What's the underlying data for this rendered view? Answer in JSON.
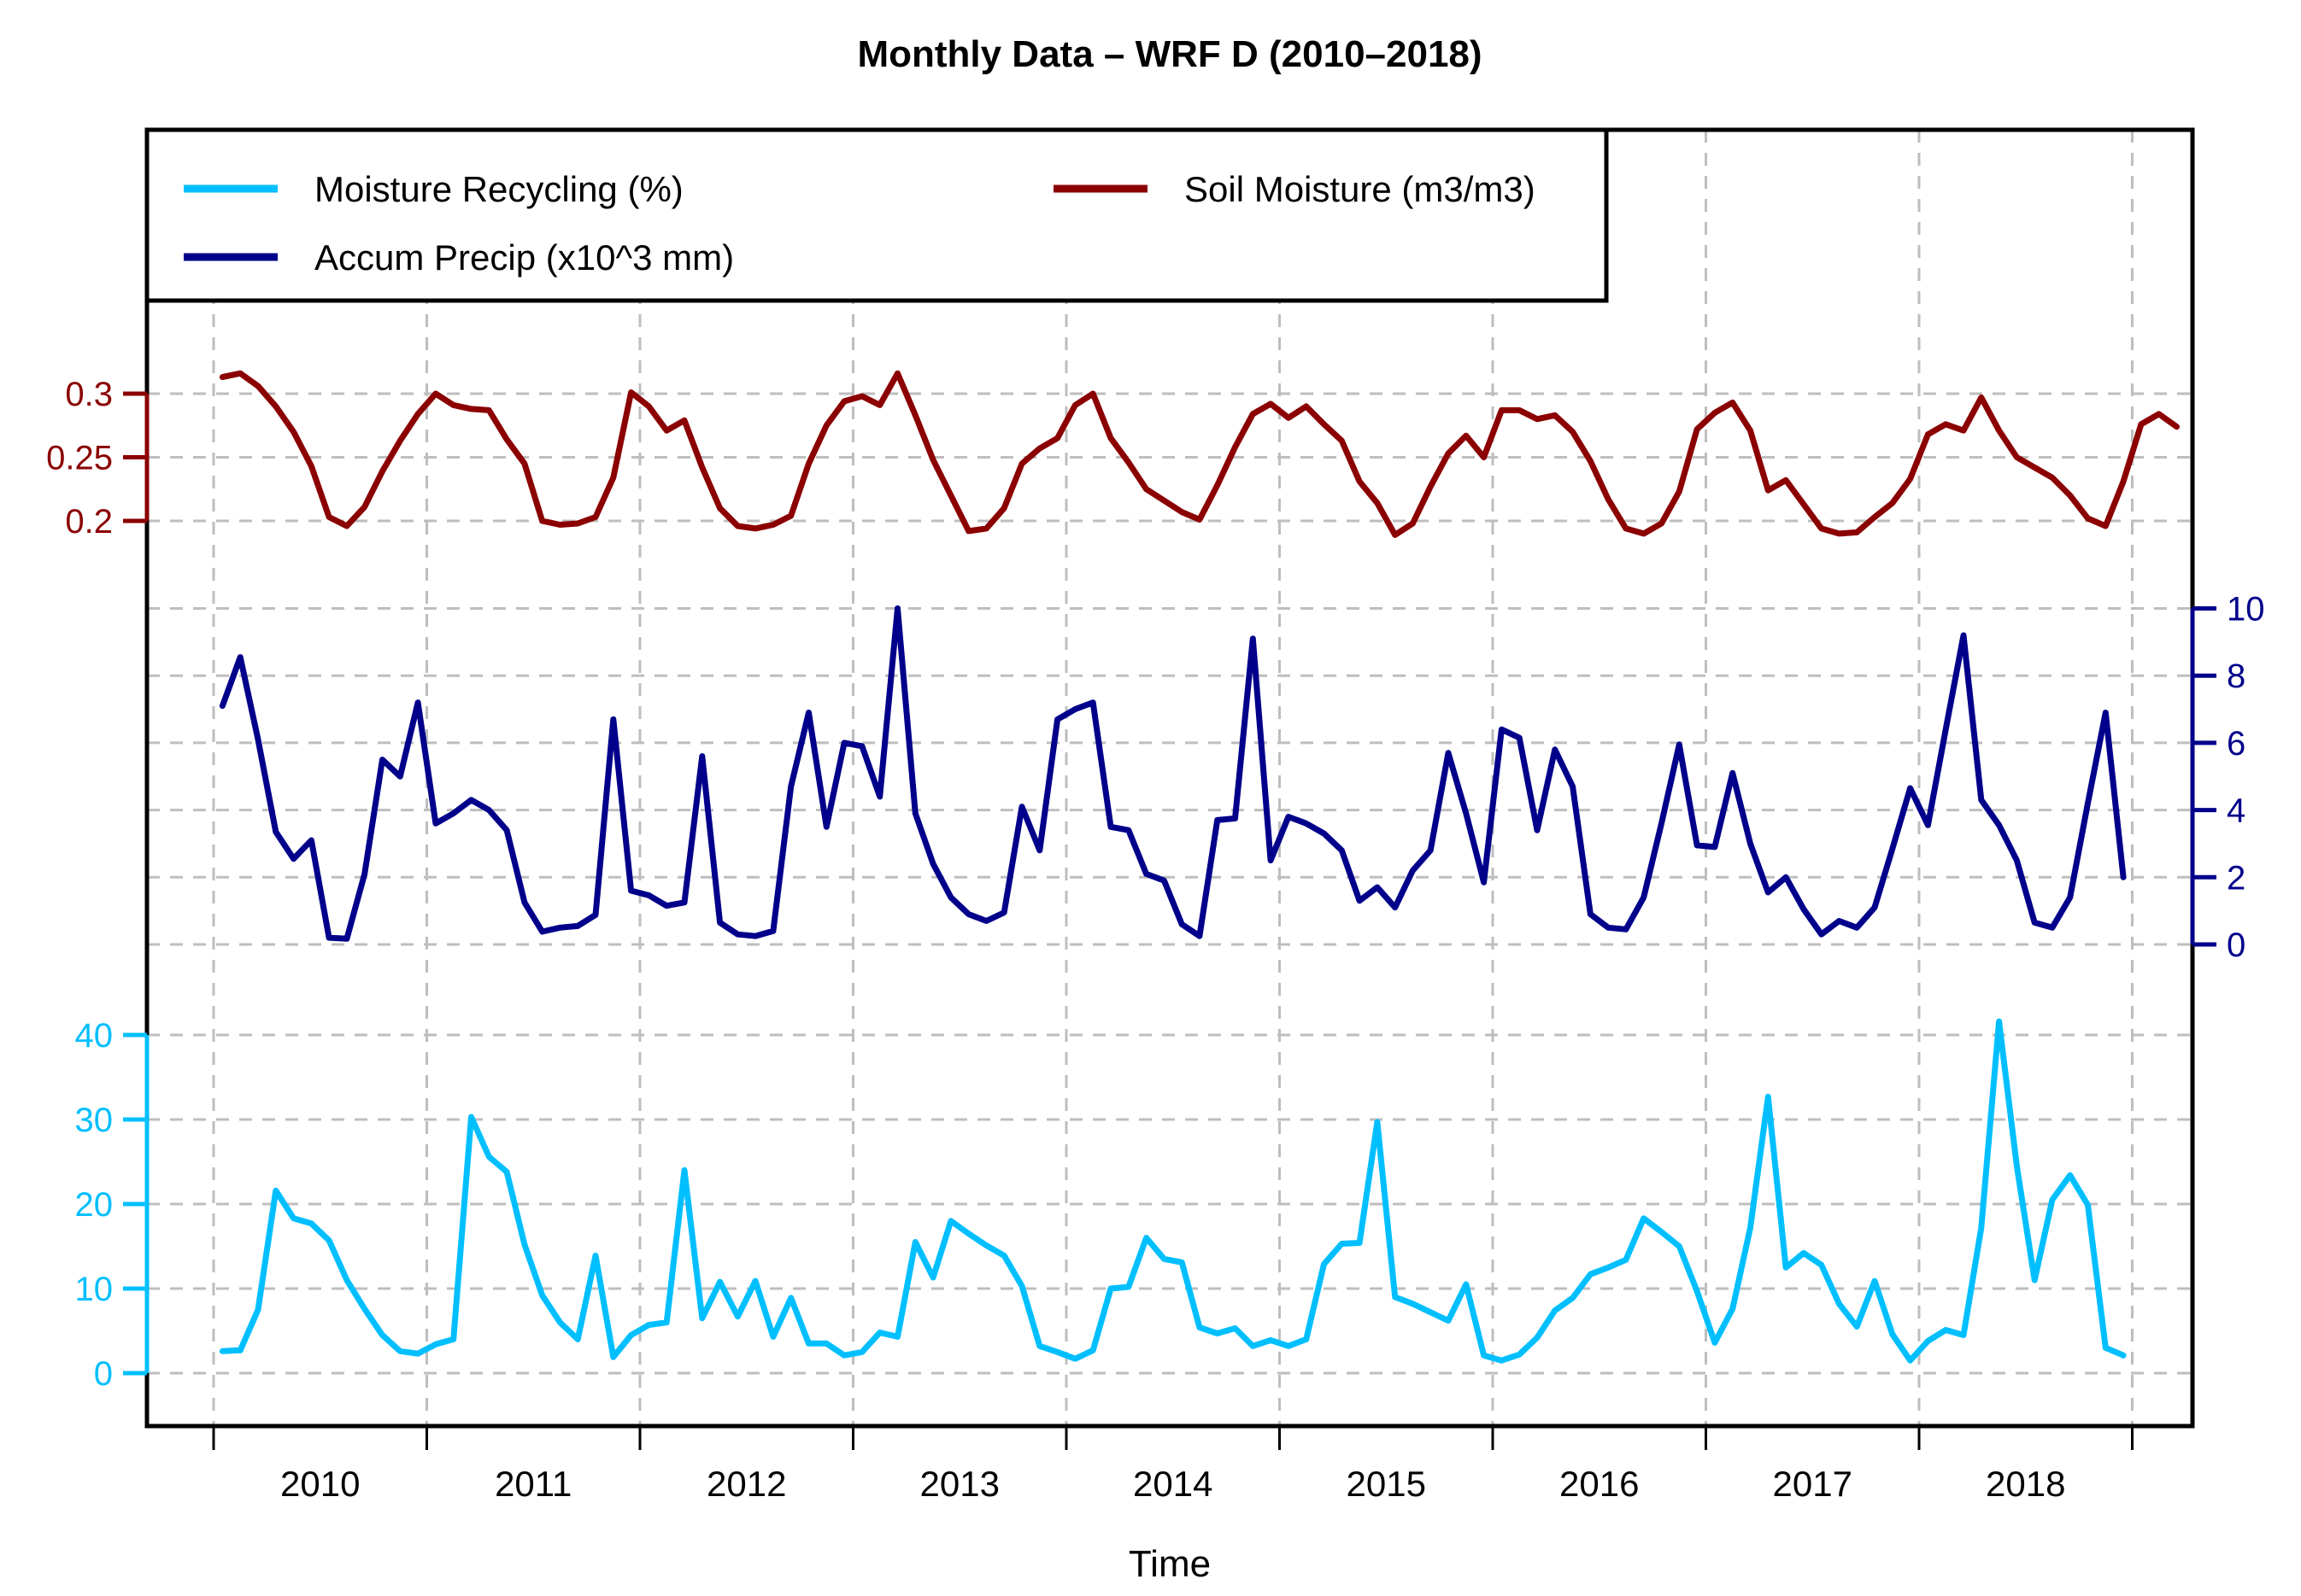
{
  "title": "Monthly Data – WRF D (2010–2018)",
  "xlabel": "Time",
  "colors": {
    "recycling": "#00BFFF",
    "precip": "#00008B",
    "soil": "#8B0000",
    "grid": "#BEBEBE",
    "frame": "#000000",
    "background": "#FFFFFF"
  },
  "chart_data": {
    "type": "line",
    "title": "Monthly Data – WRF D (2010–2018)",
    "xlabel": "Time",
    "grid": true,
    "legend_position": "top-left",
    "x_axis": {
      "tick_years": [
        2010,
        2011,
        2012,
        2013,
        2014,
        2015,
        2016,
        2017,
        2018,
        2019
      ],
      "year_labels": [
        "2010",
        "2011",
        "2012",
        "2013",
        "2014",
        "2015",
        "2016",
        "2017",
        "2018"
      ],
      "frequency": "monthly",
      "start": "2010-01"
    },
    "series": [
      {
        "name": "Moisture Recycling (%)",
        "color_key": "recycling",
        "axis": "rec",
        "axis_side": "left-lower",
        "axis_range": [
          0,
          40
        ],
        "axis_ticks": [
          "0",
          "10",
          "20",
          "30",
          "40"
        ],
        "start": "2010-01",
        "values": [
          2.6,
          2.7,
          7.5,
          21.6,
          18.3,
          17.7,
          15.7,
          11.0,
          7.6,
          4.5,
          2.6,
          2.3,
          3.4,
          4.0,
          30.3,
          25.6,
          23.8,
          15.2,
          9.2,
          6.0,
          4.0,
          13.9,
          1.9,
          4.5,
          5.7,
          6.0,
          24.0,
          6.5,
          10.8,
          6.7,
          10.9,
          4.3,
          8.9,
          3.5,
          3.5,
          2.1,
          2.5,
          4.8,
          4.3,
          15.5,
          11.3,
          18.0,
          16.5,
          15.1,
          13.9,
          10.3,
          3.2,
          2.5,
          1.7,
          2.7,
          10.0,
          10.2,
          16.0,
          13.5,
          13.1,
          5.4,
          4.7,
          5.3,
          3.2,
          3.9,
          3.2,
          4.0,
          12.9,
          15.3,
          15.4,
          29.7,
          9.0,
          8.2,
          7.2,
          6.2,
          10.5,
          2.1,
          1.5,
          2.2,
          4.2,
          7.4,
          8.9,
          11.7,
          12.5,
          13.4,
          18.3,
          16.7,
          15.0,
          9.7,
          3.6,
          7.6,
          17.2,
          32.7,
          12.5,
          14.2,
          12.8,
          8.2,
          5.5,
          10.9,
          4.6,
          1.5,
          3.8,
          5.1,
          4.5,
          17.2,
          41.6,
          24.5,
          11.0,
          20.5,
          23.4,
          19.9,
          3.0,
          2.1
        ]
      },
      {
        "name": "Accum Precip (x10^3 mm)",
        "color_key": "precip",
        "axis": "precip",
        "axis_side": "right",
        "axis_range": [
          0,
          10
        ],
        "axis_ticks": [
          "0",
          "2",
          "4",
          "6",
          "8",
          "10"
        ],
        "start": "2010-01",
        "values": [
          7.1,
          8.55,
          6.1,
          3.35,
          2.55,
          3.1,
          0.2,
          0.17,
          2.1,
          5.5,
          5.0,
          7.2,
          3.6,
          3.9,
          4.3,
          4.0,
          3.4,
          1.25,
          0.38,
          0.5,
          0.55,
          0.88,
          6.7,
          1.6,
          1.46,
          1.15,
          1.25,
          5.6,
          0.65,
          0.3,
          0.25,
          0.4,
          4.7,
          6.9,
          3.5,
          6.0,
          5.9,
          4.4,
          10.0,
          3.9,
          2.4,
          1.4,
          0.9,
          0.7,
          0.95,
          4.1,
          2.8,
          6.7,
          7.0,
          7.2,
          3.5,
          3.4,
          2.1,
          1.9,
          0.6,
          0.25,
          3.7,
          3.75,
          9.1,
          2.5,
          3.8,
          3.6,
          3.3,
          2.8,
          1.3,
          1.7,
          1.1,
          2.2,
          2.8,
          5.7,
          3.9,
          1.85,
          6.4,
          6.15,
          3.4,
          5.8,
          4.7,
          0.9,
          0.5,
          0.45,
          1.4,
          3.6,
          5.95,
          2.95,
          2.9,
          5.1,
          3.0,
          1.55,
          2.0,
          1.05,
          0.3,
          0.7,
          0.5,
          1.1,
          2.85,
          4.65,
          3.55,
          6.4,
          9.2,
          4.3,
          3.55,
          2.5,
          0.65,
          0.5,
          1.4,
          4.2,
          6.9,
          2.0
        ]
      },
      {
        "name": "Soil Moisture (m3/m3)",
        "color_key": "soil",
        "axis": "soil",
        "axis_side": "left-upper",
        "axis_range": [
          0.2,
          0.3
        ],
        "axis_ticks": [
          "0.2",
          "0.25",
          "0.3"
        ],
        "start": "2010-01",
        "values": [
          0.313,
          0.316,
          0.306,
          0.29,
          0.27,
          0.243,
          0.203,
          0.196,
          0.211,
          0.239,
          0.263,
          0.284,
          0.3,
          0.291,
          0.288,
          0.287,
          0.264,
          0.245,
          0.2,
          0.197,
          0.198,
          0.203,
          0.234,
          0.301,
          0.29,
          0.271,
          0.279,
          0.242,
          0.21,
          0.196,
          0.194,
          0.197,
          0.204,
          0.245,
          0.275,
          0.294,
          0.298,
          0.291,
          0.316,
          0.283,
          0.248,
          0.22,
          0.192,
          0.194,
          0.21,
          0.245,
          0.257,
          0.265,
          0.291,
          0.3,
          0.265,
          0.246,
          0.225,
          0.216,
          0.207,
          0.201,
          0.228,
          0.258,
          0.284,
          0.292,
          0.281,
          0.29,
          0.276,
          0.263,
          0.231,
          0.214,
          0.189,
          0.198,
          0.227,
          0.253,
          0.267,
          0.25,
          0.287,
          0.287,
          0.28,
          0.283,
          0.27,
          0.247,
          0.217,
          0.194,
          0.19,
          0.198,
          0.223,
          0.272,
          0.285,
          0.293,
          0.271,
          0.224,
          0.232,
          0.213,
          0.194,
          0.19,
          0.191,
          0.203,
          0.214,
          0.233,
          0.268,
          0.276,
          0.271,
          0.297,
          0.271,
          0.25,
          0.242,
          0.234,
          0.22,
          0.202,
          0.196,
          0.231,
          0.276,
          0.284,
          0.274
        ]
      }
    ]
  }
}
